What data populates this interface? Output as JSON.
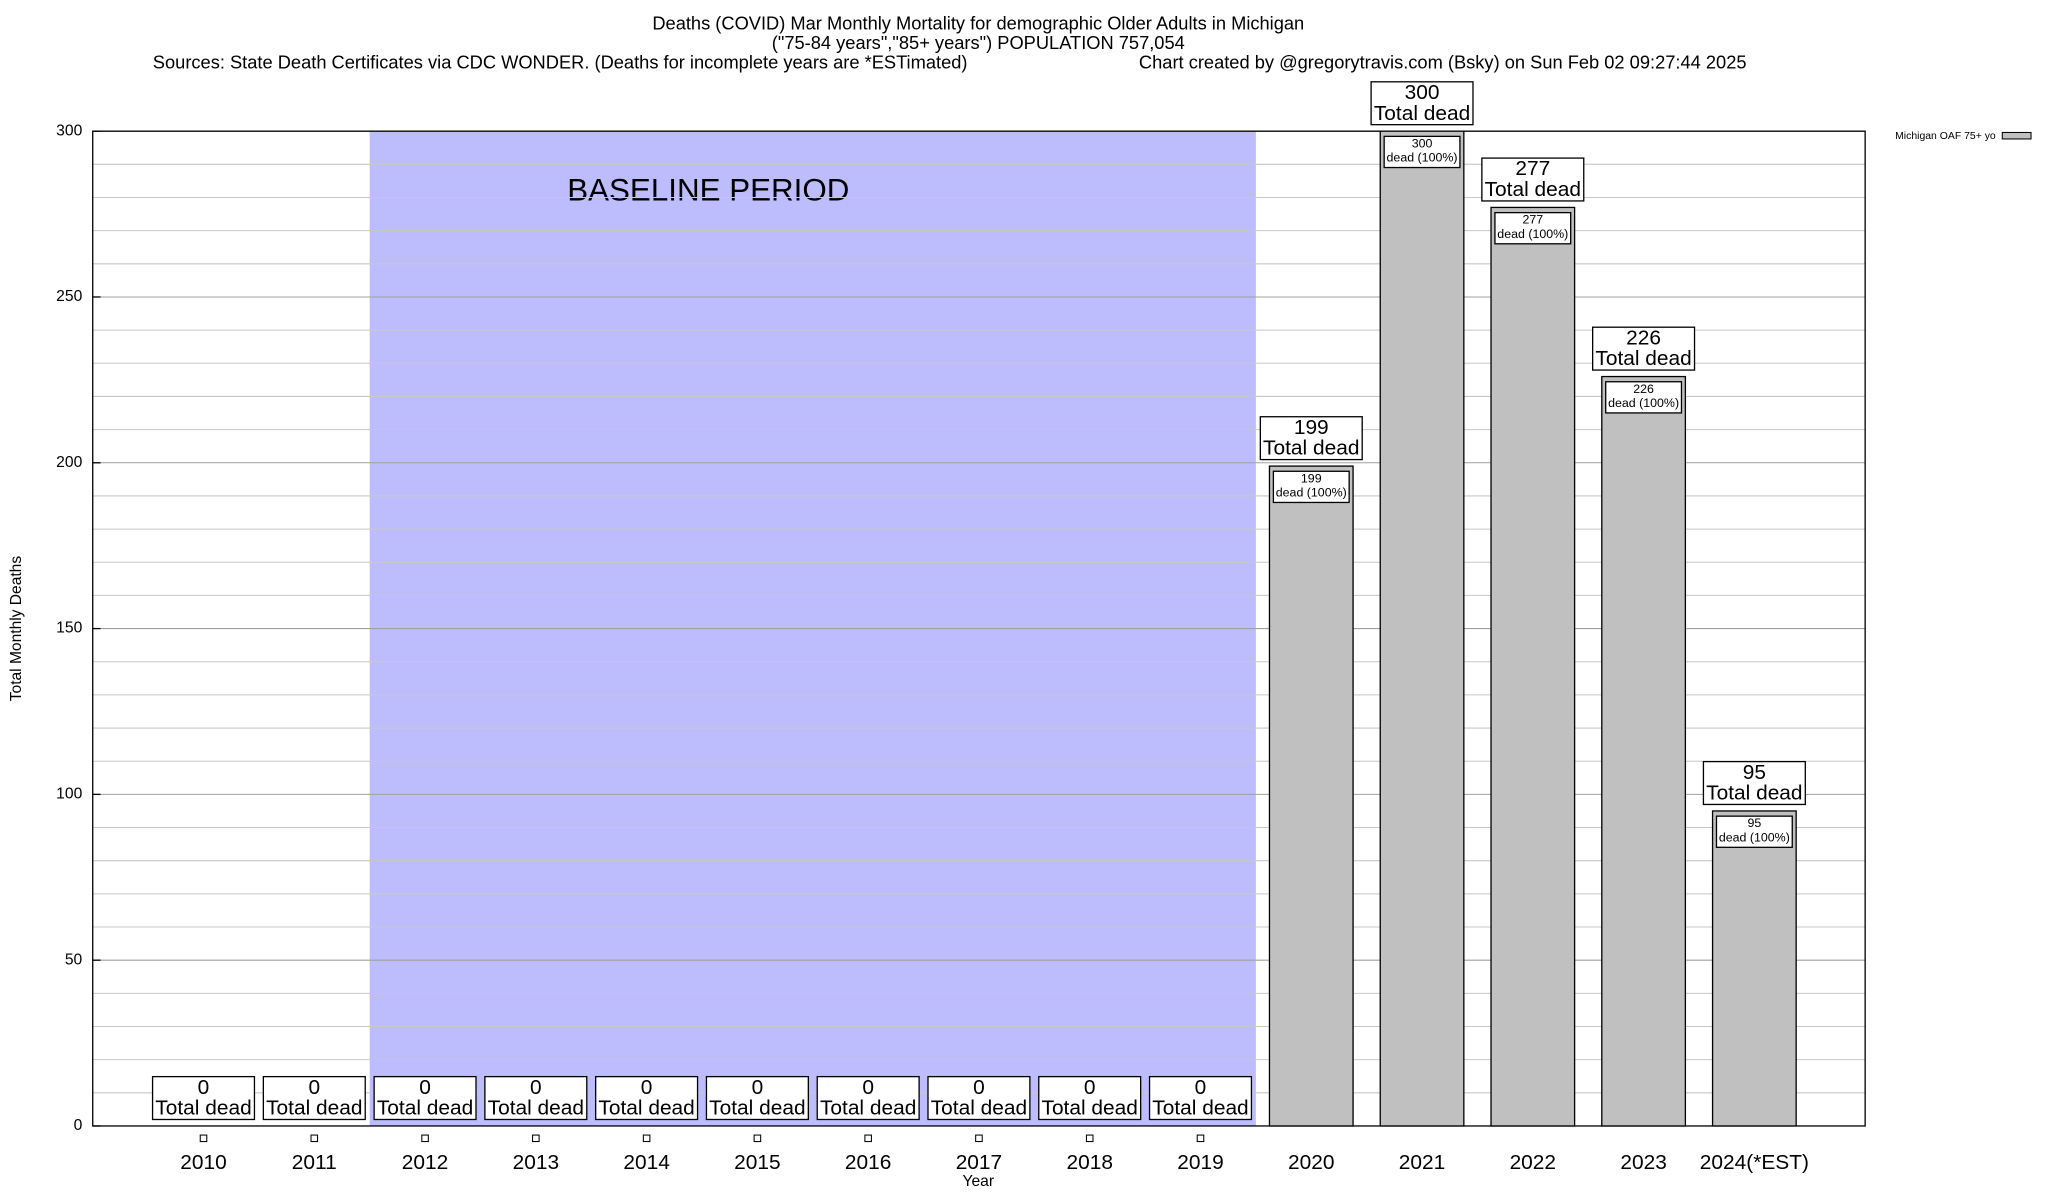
{
  "chart_data": {
    "type": "bar",
    "title": "Deaths (COVID) Mar Monthly Mortality for demographic Older Adults in Michigan",
    "subtitle": "(\"75-84 years\",\"85+ years\") POPULATION 757,054",
    "source": "Sources: State Death Certificates via CDC WONDER. (Deaths for incomplete years are *ESTimated)",
    "credit": "Chart created by @gregorytravis.com (Bsky) on Sun Feb 02 09:27:44 2025",
    "x_label": "Year",
    "y_label": "Total Monthly Deaths",
    "categories": [
      "2010",
      "2011",
      "2012",
      "2013",
      "2014",
      "2015",
      "2016",
      "2017",
      "2018",
      "2019",
      "2020",
      "2021",
      "2022",
      "2023",
      "2024(*EST)"
    ],
    "series": [
      {
        "name": "Michigan OAF 75+ yo",
        "color": "#c0c0c0",
        "values": [
          0,
          0,
          0,
          0,
          0,
          0,
          0,
          0,
          0,
          0,
          199,
          300,
          277,
          226,
          95
        ]
      }
    ],
    "total_label": "Total dead",
    "inner_label": "dead (100%)",
    "baseline": {
      "label": "BASELINE PERIOD",
      "start": "2012",
      "end": "2019",
      "color": "#bdbdfd"
    },
    "ylim": [
      0,
      300
    ],
    "yticks": [
      0,
      50,
      100,
      150,
      200,
      250,
      300
    ],
    "minor_yticks": [
      10,
      20,
      30,
      40,
      60,
      70,
      80,
      90,
      110,
      120,
      130,
      140,
      160,
      170,
      180,
      190,
      210,
      220,
      230,
      240,
      260,
      270,
      280,
      290
    ],
    "grid": true,
    "legend": "top-right"
  }
}
